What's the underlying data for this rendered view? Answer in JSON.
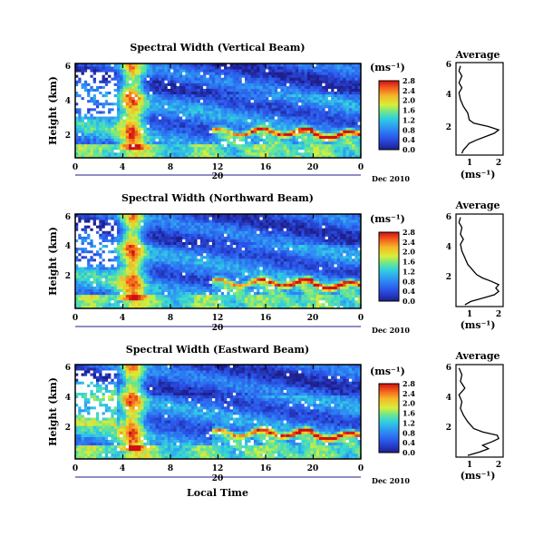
{
  "chart_data": [
    {
      "type": "heatmap",
      "title": "Spectral Width (Vertical Beam)",
      "ylabel": "Height (km)",
      "xlim": [
        0,
        24
      ],
      "ylim": [
        0.5,
        6
      ],
      "x_ticks": [
        "0",
        "4",
        "8",
        "12",
        "16",
        "20",
        "0"
      ],
      "y_ticks": [
        "2",
        "4",
        "6"
      ],
      "date_marker": "20",
      "date_label": "Dec 2010",
      "colorbar": {
        "unit": "(ms⁻¹)",
        "ticks": [
          "0.0",
          "0.4",
          "0.8",
          "1.2",
          "1.6",
          "2.0",
          "2.4",
          "2.8"
        ]
      }
    },
    {
      "type": "line",
      "title": "Average",
      "xlabel": "(ms⁻¹)",
      "x_ticks": [
        "1",
        "2"
      ],
      "y_ticks": [
        "2",
        "4",
        "6"
      ],
      "xlim": [
        0.6,
        2.2
      ],
      "ylim": [
        0.5,
        6
      ],
      "profile": [
        [
          0.8,
          0.6
        ],
        [
          0.85,
          0.8
        ],
        [
          0.95,
          1.0
        ],
        [
          1.05,
          1.2
        ],
        [
          1.3,
          1.4
        ],
        [
          1.6,
          1.6
        ],
        [
          1.9,
          1.8
        ],
        [
          2.05,
          2.0
        ],
        [
          1.7,
          2.2
        ],
        [
          1.2,
          2.4
        ],
        [
          1.05,
          2.6
        ],
        [
          1.0,
          3.0
        ],
        [
          0.85,
          3.4
        ],
        [
          0.75,
          3.8
        ],
        [
          0.7,
          4.2
        ],
        [
          0.8,
          4.5
        ],
        [
          0.7,
          4.8
        ],
        [
          0.8,
          5.2
        ],
        [
          0.7,
          5.5
        ],
        [
          0.75,
          5.8
        ]
      ]
    },
    {
      "type": "heatmap",
      "title": "Spectral Width (Northward Beam)",
      "ylabel": "Height (km)",
      "xlim": [
        0,
        24
      ],
      "ylim": [
        0.5,
        6
      ],
      "x_ticks": [
        "0",
        "4",
        "8",
        "12",
        "16",
        "20",
        "0"
      ],
      "y_ticks": [
        "2",
        "4",
        "6"
      ],
      "date_marker": "20",
      "date_label": "Dec 2010",
      "colorbar": {
        "unit": "(ms⁻¹)",
        "ticks": [
          "0.0",
          "0.4",
          "0.8",
          "1.2",
          "1.6",
          "2.0",
          "2.4",
          "2.8"
        ]
      }
    },
    {
      "type": "line",
      "title": "Average",
      "xlabel": "(ms⁻¹)",
      "x_ticks": [
        "1",
        "2"
      ],
      "y_ticks": [
        "2",
        "4",
        "6"
      ],
      "xlim": [
        0.6,
        2.2
      ],
      "ylim": [
        0.5,
        6
      ],
      "profile": [
        [
          0.9,
          0.6
        ],
        [
          1.1,
          0.8
        ],
        [
          1.5,
          1.0
        ],
        [
          1.9,
          1.2
        ],
        [
          2.05,
          1.4
        ],
        [
          1.95,
          1.6
        ],
        [
          2.05,
          1.8
        ],
        [
          1.8,
          2.0
        ],
        [
          1.5,
          2.2
        ],
        [
          1.3,
          2.4
        ],
        [
          1.2,
          2.6
        ],
        [
          1.1,
          2.8
        ],
        [
          1.0,
          3.0
        ],
        [
          0.9,
          3.4
        ],
        [
          0.8,
          3.8
        ],
        [
          0.75,
          4.2
        ],
        [
          0.85,
          4.5
        ],
        [
          0.75,
          4.8
        ],
        [
          0.8,
          5.2
        ],
        [
          0.7,
          5.5
        ],
        [
          0.75,
          5.8
        ]
      ]
    },
    {
      "type": "heatmap",
      "title": "Spectral Width (Eastward Beam)",
      "ylabel": "Height (km)",
      "xlabel": "Local Time",
      "xlim": [
        0,
        24
      ],
      "ylim": [
        0.5,
        6
      ],
      "x_ticks": [
        "0",
        "4",
        "8",
        "12",
        "16",
        "20",
        "0"
      ],
      "y_ticks": [
        "2",
        "4",
        "6"
      ],
      "date_marker": "20",
      "date_label": "Dec 2010",
      "colorbar": {
        "unit": "(ms⁻¹)",
        "ticks": [
          "0.0",
          "0.4",
          "0.8",
          "1.2",
          "1.6",
          "2.0",
          "2.4",
          "2.8"
        ]
      }
    },
    {
      "type": "line",
      "title": "Average",
      "xlabel": "(ms⁻¹)",
      "x_ticks": [
        "1",
        "2"
      ],
      "y_ticks": [
        "2",
        "4",
        "6"
      ],
      "xlim": [
        0.6,
        2.2
      ],
      "ylim": [
        0.5,
        6
      ],
      "profile": [
        [
          1.0,
          0.6
        ],
        [
          1.4,
          0.8
        ],
        [
          1.7,
          1.0
        ],
        [
          1.5,
          1.2
        ],
        [
          1.8,
          1.4
        ],
        [
          2.05,
          1.6
        ],
        [
          2.0,
          1.8
        ],
        [
          1.5,
          2.0
        ],
        [
          1.2,
          2.2
        ],
        [
          1.1,
          2.4
        ],
        [
          1.0,
          2.6
        ],
        [
          0.85,
          3.0
        ],
        [
          0.75,
          3.4
        ],
        [
          0.8,
          3.8
        ],
        [
          0.7,
          4.2
        ],
        [
          0.9,
          4.6
        ],
        [
          0.75,
          5.0
        ],
        [
          0.8,
          5.4
        ],
        [
          0.7,
          5.8
        ]
      ]
    }
  ]
}
